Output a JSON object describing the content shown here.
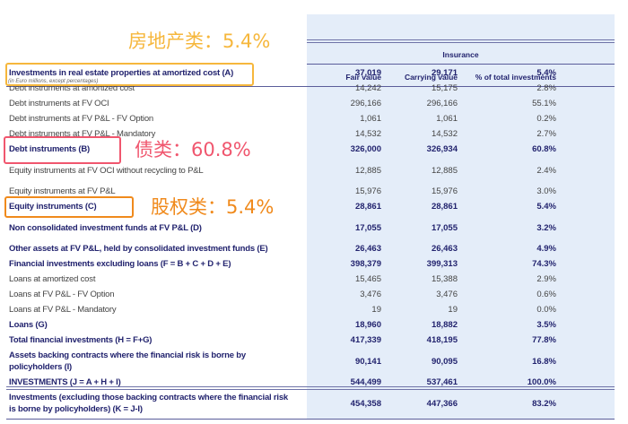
{
  "header": {
    "group": "Insurance",
    "units_note": "(in Euro millions, except percentages)",
    "columns": [
      "Fair value",
      "Carrying value",
      "% of total investments"
    ]
  },
  "rows": [
    {
      "label": "Investments in real estate properties at amortized cost (A)",
      "fair": "37,019",
      "carrying": "29,171",
      "pct": "5.4%",
      "bold": true
    },
    {
      "label": "Debt instruments at amortized cost",
      "fair": "14,242",
      "carrying": "15,175",
      "pct": "2.8%"
    },
    {
      "label": "Debt instruments at FV OCI",
      "fair": "296,166",
      "carrying": "296,166",
      "pct": "55.1%"
    },
    {
      "label": "Debt instruments at FV P&L - FV Option",
      "fair": "1,061",
      "carrying": "1,061",
      "pct": "0.2%"
    },
    {
      "label": "Debt instruments at FV P&L - Mandatory",
      "fair": "14,532",
      "carrying": "14,532",
      "pct": "2.7%"
    },
    {
      "label": "Debt instruments (B)",
      "fair": "326,000",
      "carrying": "326,934",
      "pct": "60.8%",
      "bold": true
    },
    {
      "label": "Equity instruments at FV OCI without recycling to P&L",
      "fair": "12,885",
      "carrying": "12,885",
      "pct": "2.4%",
      "double": true
    },
    {
      "label": "Equity instruments at FV P&L",
      "fair": "15,976",
      "carrying": "15,976",
      "pct": "3.0%"
    },
    {
      "label": "Equity instruments (C)",
      "fair": "28,861",
      "carrying": "28,861",
      "pct": "5.4%",
      "bold": true
    },
    {
      "label": "Non consolidated investment funds at FV P&L (D)",
      "fair": "17,055",
      "carrying": "17,055",
      "pct": "3.2%",
      "bold": true,
      "double": true
    },
    {
      "label": "Other assets at FV P&L, held by consolidated investment funds (E)",
      "fair": "26,463",
      "carrying": "26,463",
      "pct": "4.9%",
      "bold": true
    },
    {
      "label": "Financial investments excluding loans (F = B + C + D + E)",
      "fair": "398,379",
      "carrying": "399,313",
      "pct": "74.3%",
      "bold": true
    },
    {
      "label": "Loans at amortized cost",
      "fair": "15,465",
      "carrying": "15,388",
      "pct": "2.9%"
    },
    {
      "label": "Loans at FV P&L - FV Option",
      "fair": "3,476",
      "carrying": "3,476",
      "pct": "0.6%"
    },
    {
      "label": "Loans at FV P&L - Mandatory",
      "fair": "19",
      "carrying": "19",
      "pct": "0.0%"
    },
    {
      "label": "Loans (G)",
      "fair": "18,960",
      "carrying": "18,882",
      "pct": "3.5%",
      "bold": true
    },
    {
      "label": "Total financial investments (H = F+G)",
      "fair": "417,339",
      "carrying": "418,195",
      "pct": "77.8%",
      "bold": true
    },
    {
      "label": "Assets backing contracts where the financial risk is borne by policyholders (I)",
      "fair": "90,141",
      "carrying": "90,095",
      "pct": "16.8%",
      "bold": true,
      "double": true
    },
    {
      "label": "INVESTMENTS (J = A + H + I)",
      "fair": "544,499",
      "carrying": "537,461",
      "pct": "100.0%",
      "bold": true
    },
    {
      "label": "Investments (excluding those backing contracts where the financial risk is borne by policyholders) (K = J-I)",
      "fair": "454,358",
      "carrying": "447,366",
      "pct": "83.2%",
      "bold": true,
      "double": true
    }
  ],
  "annotations": {
    "real_estate": {
      "text": "房地产类：5.4%",
      "color": "#f6b73c"
    },
    "debt": {
      "text": "债类：60.8%",
      "color": "#f0566e"
    },
    "equity": {
      "text": "股权类：5.4%",
      "color": "#f08a1c"
    }
  }
}
